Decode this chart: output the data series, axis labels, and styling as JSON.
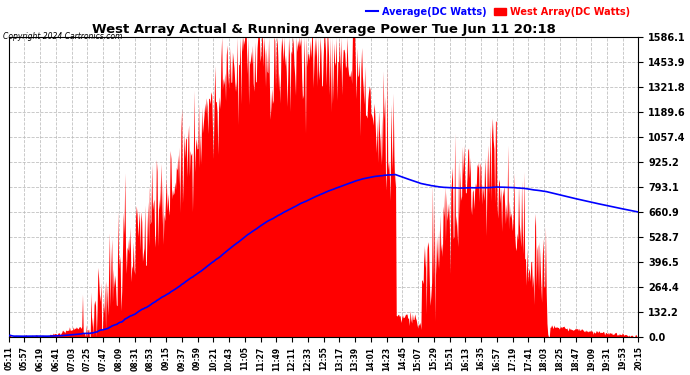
{
  "title": "West Array Actual & Running Average Power Tue Jun 11 20:18",
  "copyright": "Copyright 2024 Cartronics.com",
  "legend_avg": "Average(DC Watts)",
  "legend_west": "West Array(DC Watts)",
  "avg_color": "#0000FF",
  "west_color": "#FF0000",
  "fill_color": "#FF0000",
  "background_color": "#FFFFFF",
  "grid_color": "#BBBBBB",
  "ylim": [
    0,
    1586.1
  ],
  "yticks": [
    0.0,
    132.2,
    264.4,
    396.5,
    528.7,
    660.9,
    793.1,
    925.2,
    1057.4,
    1189.6,
    1321.8,
    1453.9,
    1586.1
  ],
  "x_labels": [
    "05:11",
    "05:57",
    "06:19",
    "06:41",
    "07:03",
    "07:25",
    "07:47",
    "08:09",
    "08:31",
    "08:53",
    "09:15",
    "09:37",
    "09:59",
    "10:21",
    "10:43",
    "11:05",
    "11:27",
    "11:49",
    "12:11",
    "12:33",
    "12:55",
    "13:17",
    "13:39",
    "14:01",
    "14:23",
    "14:45",
    "15:07",
    "15:29",
    "15:51",
    "16:13",
    "16:35",
    "16:57",
    "17:19",
    "17:41",
    "18:03",
    "18:25",
    "18:47",
    "19:09",
    "19:31",
    "19:53",
    "20:15"
  ],
  "figsize": [
    6.9,
    3.75
  ],
  "dpi": 100
}
